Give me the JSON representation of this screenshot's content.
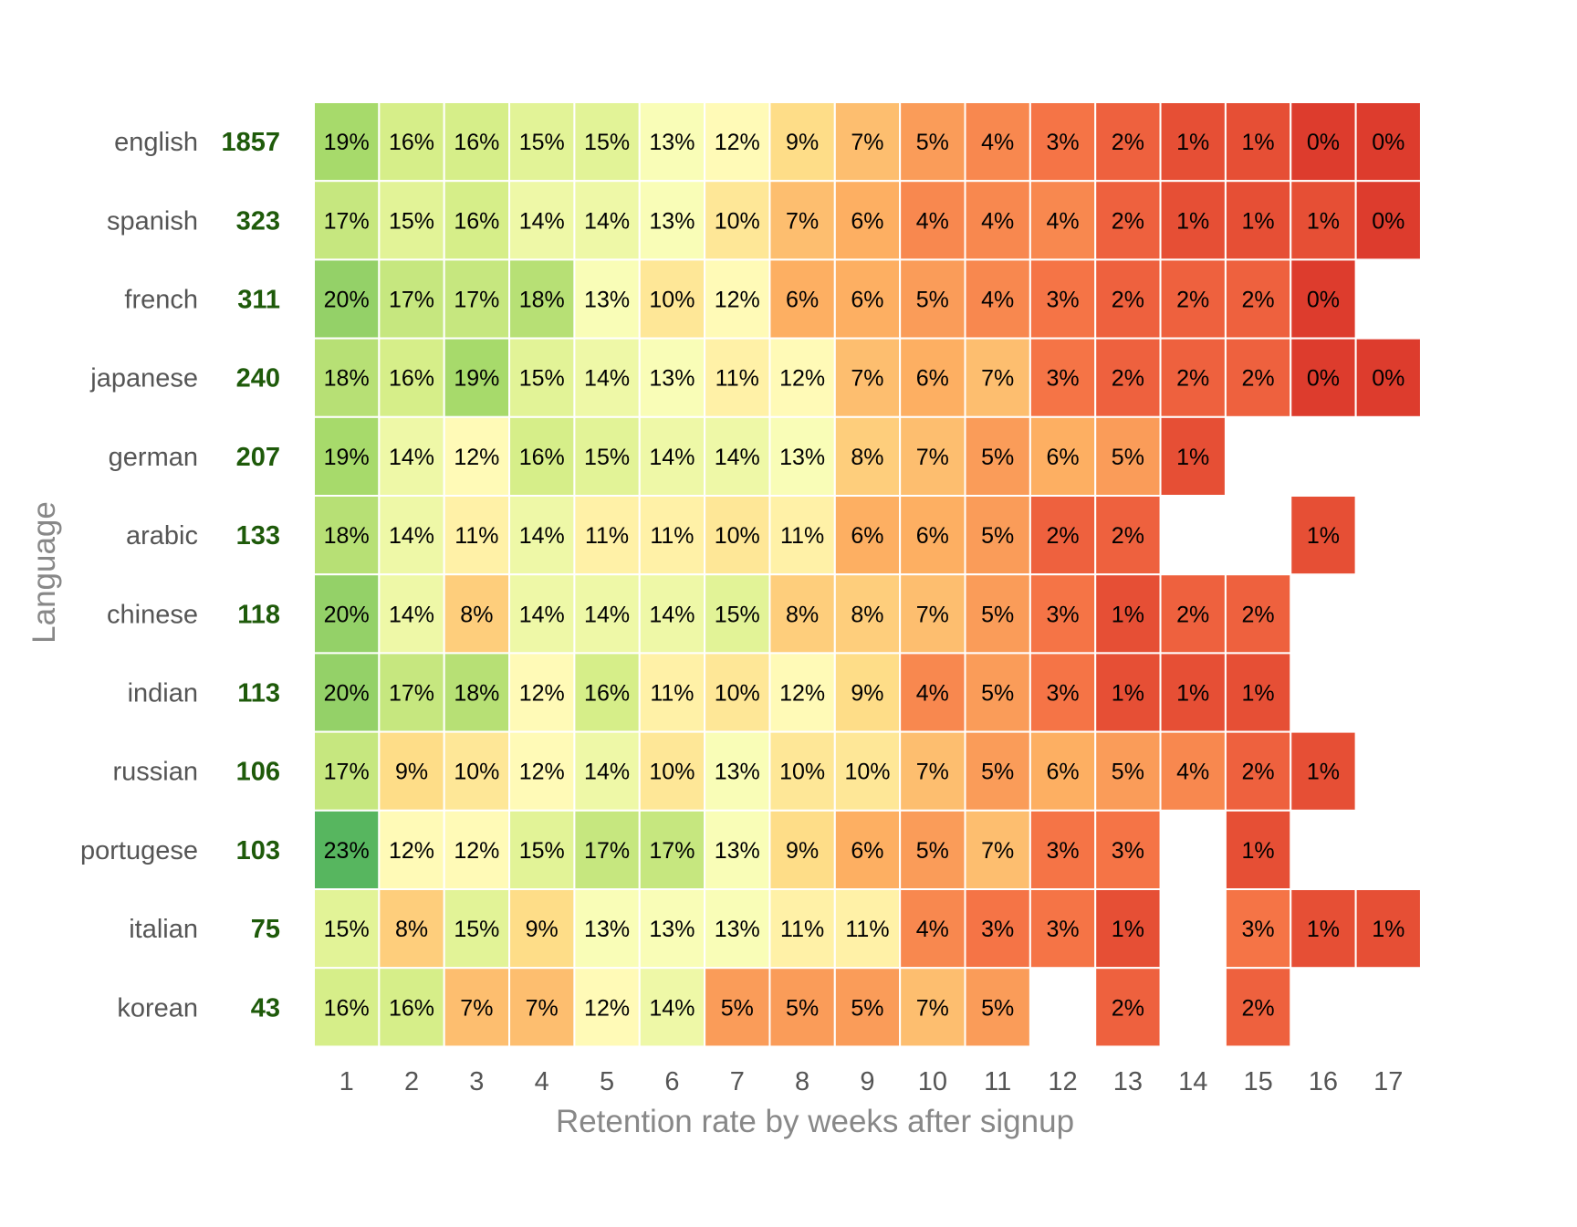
{
  "chart_data": {
    "type": "heatmap",
    "xlabel": "Retention rate by weeks after signup",
    "ylabel": "Language",
    "x": [
      "1",
      "2",
      "3",
      "4",
      "5",
      "6",
      "7",
      "8",
      "9",
      "10",
      "11",
      "12",
      "13",
      "14",
      "15",
      "16",
      "17"
    ],
    "rows": [
      {
        "label": "english",
        "count": "1857",
        "values": [
          19,
          16,
          16,
          15,
          15,
          13,
          12,
          9,
          7,
          5,
          4,
          3,
          2,
          1,
          1,
          0,
          0
        ]
      },
      {
        "label": "spanish",
        "count": "323",
        "values": [
          17,
          15,
          16,
          14,
          14,
          13,
          10,
          7,
          6,
          4,
          4,
          4,
          2,
          1,
          1,
          1,
          0
        ]
      },
      {
        "label": "french",
        "count": "311",
        "values": [
          20,
          17,
          17,
          18,
          13,
          10,
          12,
          6,
          6,
          5,
          4,
          3,
          2,
          2,
          2,
          0,
          null
        ]
      },
      {
        "label": "japanese",
        "count": "240",
        "values": [
          18,
          16,
          19,
          15,
          14,
          13,
          11,
          12,
          7,
          6,
          7,
          3,
          2,
          2,
          2,
          0,
          0
        ]
      },
      {
        "label": "german",
        "count": "207",
        "values": [
          19,
          14,
          12,
          16,
          15,
          14,
          14,
          13,
          8,
          7,
          5,
          6,
          5,
          1,
          null,
          null,
          null
        ]
      },
      {
        "label": "arabic",
        "count": "133",
        "values": [
          18,
          14,
          11,
          14,
          11,
          11,
          10,
          11,
          6,
          6,
          5,
          2,
          2,
          null,
          null,
          1,
          null
        ]
      },
      {
        "label": "chinese",
        "count": "118",
        "values": [
          20,
          14,
          8,
          14,
          14,
          14,
          15,
          8,
          8,
          7,
          5,
          3,
          1,
          2,
          2,
          null,
          null
        ]
      },
      {
        "label": "indian",
        "count": "113",
        "values": [
          20,
          17,
          18,
          12,
          16,
          11,
          10,
          12,
          9,
          4,
          5,
          3,
          1,
          1,
          1,
          null,
          null
        ]
      },
      {
        "label": "russian",
        "count": "106",
        "values": [
          17,
          9,
          10,
          12,
          14,
          10,
          13,
          10,
          10,
          7,
          5,
          6,
          5,
          4,
          2,
          1,
          null
        ]
      },
      {
        "label": "portugese",
        "count": "103",
        "values": [
          23,
          12,
          12,
          15,
          17,
          17,
          13,
          9,
          6,
          5,
          7,
          3,
          3,
          null,
          1,
          null,
          null
        ]
      },
      {
        "label": "italian",
        "count": "75",
        "values": [
          15,
          8,
          15,
          9,
          13,
          13,
          13,
          11,
          11,
          4,
          3,
          3,
          1,
          null,
          3,
          1,
          1
        ]
      },
      {
        "label": "korean",
        "count": "43",
        "values": [
          16,
          16,
          7,
          7,
          12,
          14,
          5,
          5,
          5,
          7,
          5,
          null,
          2,
          null,
          2,
          null,
          null
        ]
      }
    ],
    "value_suffix": "%",
    "colormap": "RdYlGn",
    "vmin": 0,
    "vmax": 25,
    "count_color": "#1e5a0a",
    "grid": false
  }
}
